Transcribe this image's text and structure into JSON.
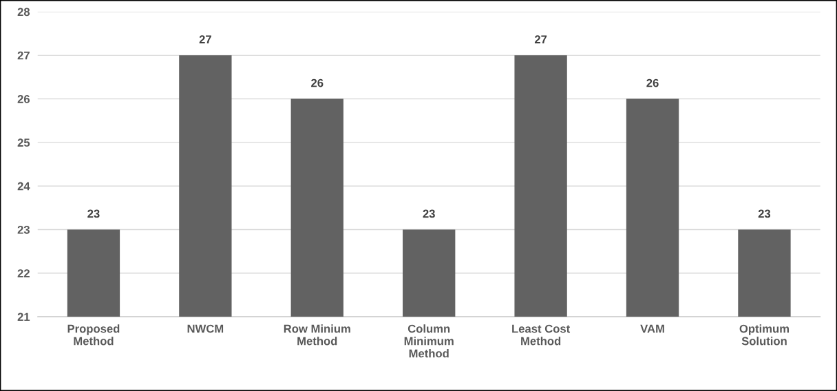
{
  "chart_data": {
    "type": "bar",
    "categories": [
      "Proposed\nMethod",
      "NWCM",
      "Row Minium\nMethod",
      "Column\nMinimum\nMethod",
      "Least Cost\nMethod",
      "VAM",
      "Optimum\nSolution"
    ],
    "values": [
      23,
      27,
      26,
      23,
      27,
      26,
      23
    ],
    "color": "#626262",
    "ylim": [
      21,
      28
    ],
    "yticks": [
      21,
      22,
      23,
      24,
      25,
      26,
      27,
      28
    ],
    "grid": "y",
    "data_labels": true
  }
}
